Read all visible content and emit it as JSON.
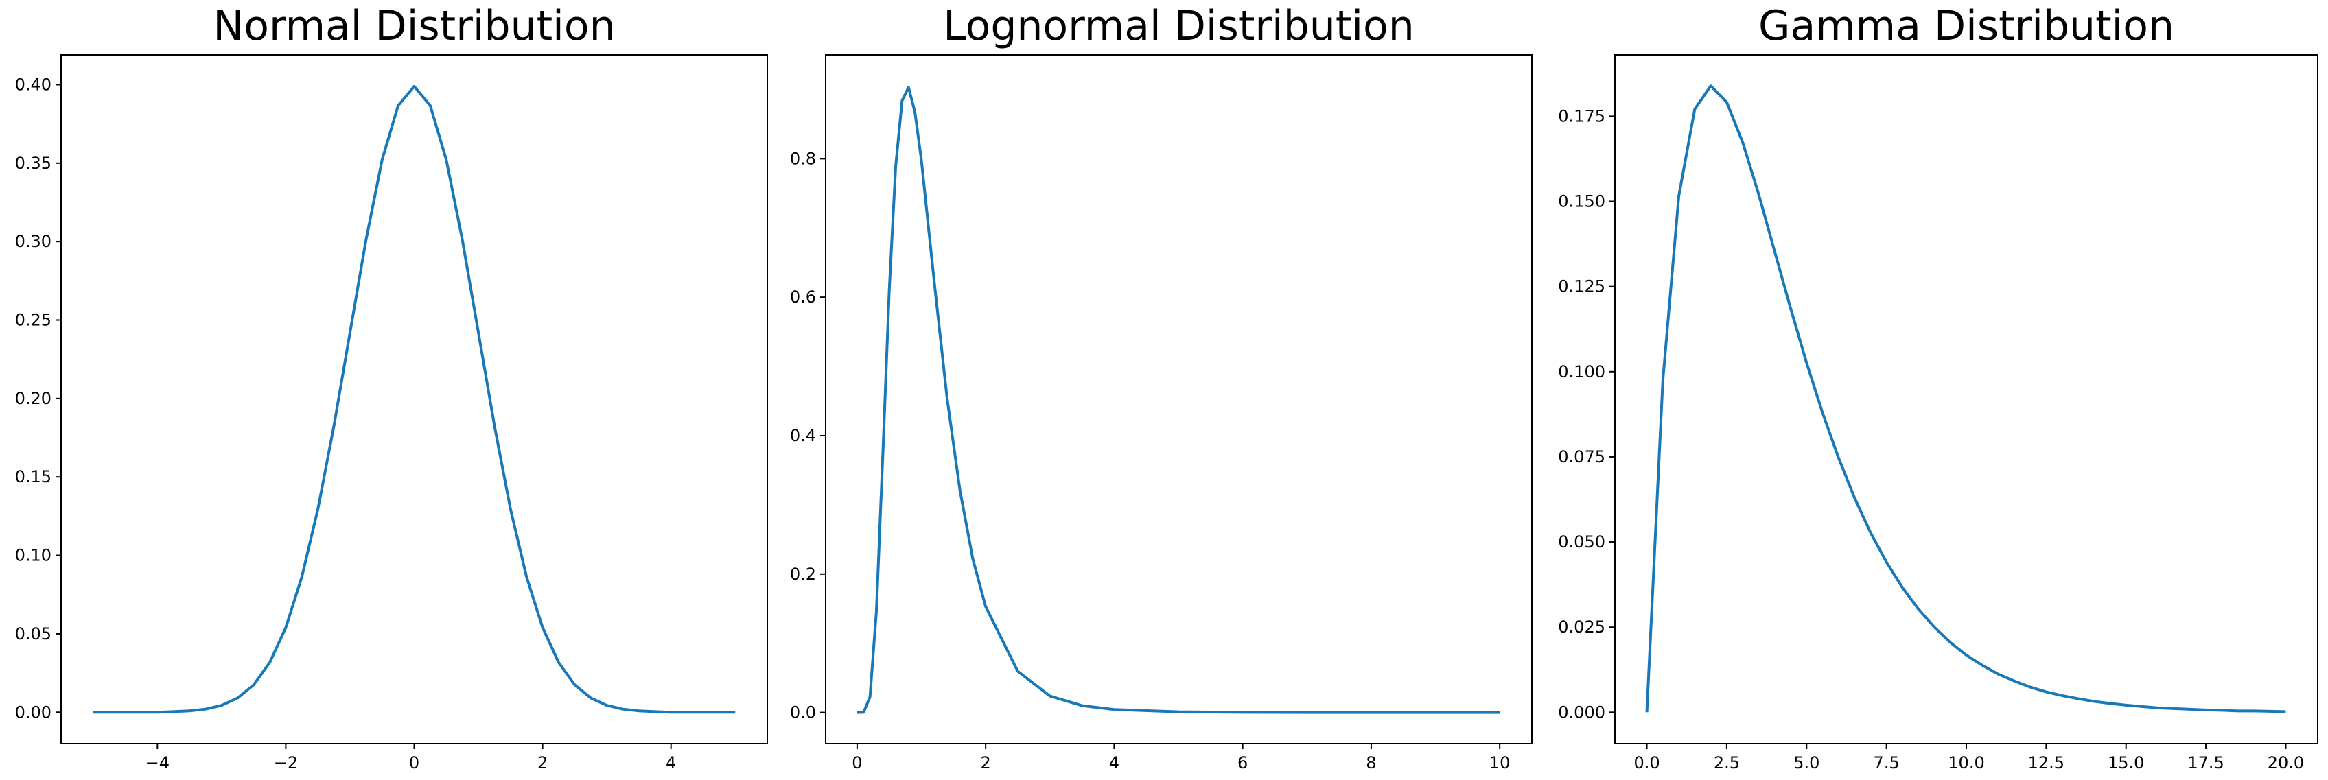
{
  "chart_data": [
    {
      "type": "line",
      "title": "Normal Distribution",
      "color": "#1878b8",
      "x": [
        -5,
        -4.75,
        -4.5,
        -4.25,
        -4,
        -3.75,
        -3.5,
        -3.25,
        -3,
        -2.75,
        -2.5,
        -2.25,
        -2,
        -1.75,
        -1.5,
        -1.25,
        -1,
        -0.75,
        -0.5,
        -0.25,
        0,
        0.25,
        0.5,
        0.75,
        1,
        1.25,
        1.5,
        1.75,
        2,
        2.25,
        2.5,
        2.75,
        3,
        3.25,
        3.5,
        3.75,
        4,
        4.25,
        4.5,
        4.75,
        5
      ],
      "values": [
        0,
        0,
        0,
        0,
        0,
        0.0004,
        0.0009,
        0.002,
        0.0044,
        0.0091,
        0.0175,
        0.0317,
        0.054,
        0.0863,
        0.1295,
        0.1826,
        0.242,
        0.3011,
        0.3521,
        0.3867,
        0.3989,
        0.3867,
        0.3521,
        0.3011,
        0.242,
        0.1826,
        0.1295,
        0.0863,
        0.054,
        0.0317,
        0.0175,
        0.0091,
        0.0044,
        0.002,
        0.0009,
        0.0004,
        0,
        0,
        0,
        0,
        0
      ],
      "xlim": [
        -5.5,
        5.5
      ],
      "ylim": [
        -0.02,
        0.419
      ],
      "xticks": [
        {
          "value": -4,
          "label": "−4"
        },
        {
          "value": -2,
          "label": "−2"
        },
        0,
        2,
        4
      ],
      "yticks": [
        {
          "value": 0,
          "label": "0.00"
        },
        {
          "value": 0.05,
          "label": "0.05"
        },
        {
          "value": 0.1,
          "label": "0.10"
        },
        {
          "value": 0.15,
          "label": "0.15"
        },
        {
          "value": 0.2,
          "label": "0.20"
        },
        {
          "value": 0.25,
          "label": "0.25"
        },
        {
          "value": 0.3,
          "label": "0.30"
        },
        {
          "value": 0.35,
          "label": "0.35"
        },
        {
          "value": 0.4,
          "label": "0.40"
        }
      ]
    },
    {
      "type": "line",
      "title": "Lognormal Distribution",
      "color": "#1878b8",
      "x": [
        0,
        0.1,
        0.2,
        0.3,
        0.4,
        0.5,
        0.6,
        0.7,
        0.8,
        0.9,
        1,
        1.2,
        1.4,
        1.6,
        1.8,
        2,
        2.5,
        3,
        3.5,
        4,
        5,
        6,
        7,
        8,
        9,
        10
      ],
      "values": [
        0,
        0.0002,
        0.0224,
        0.1466,
        0.372,
        0.61,
        0.789,
        0.884,
        0.903,
        0.867,
        0.798,
        0.622,
        0.454,
        0.321,
        0.222,
        0.153,
        0.0595,
        0.0238,
        0.0099,
        0.0043,
        0.0009,
        0.0002,
        0,
        0,
        0,
        0
      ],
      "xlim": [
        -0.49,
        10.5
      ],
      "ylim": [
        -0.045,
        0.95
      ],
      "xticks": [
        0,
        2,
        4,
        6,
        8,
        10
      ],
      "yticks": [
        {
          "value": 0,
          "label": "0.0"
        },
        {
          "value": 0.2,
          "label": "0.2"
        },
        {
          "value": 0.4,
          "label": "0.4"
        },
        {
          "value": 0.6,
          "label": "0.6"
        },
        {
          "value": 0.8,
          "label": "0.8"
        }
      ]
    },
    {
      "type": "line",
      "title": "Gamma Distribution",
      "color": "#1878b8",
      "x": [
        0,
        0.5,
        1,
        1.5,
        2,
        2.5,
        3,
        3.5,
        4,
        4.5,
        5,
        5.5,
        6,
        6.5,
        7,
        7.5,
        8,
        8.5,
        9,
        9.5,
        10,
        10.5,
        11,
        11.5,
        12,
        12.5,
        13,
        13.5,
        14,
        14.5,
        15,
        15.5,
        16,
        16.5,
        17,
        17.5,
        18,
        18.5,
        19,
        19.5,
        20
      ],
      "values": [
        0,
        0.0974,
        0.1516,
        0.1771,
        0.1839,
        0.1791,
        0.1673,
        0.1521,
        0.1353,
        0.1186,
        0.1026,
        0.0879,
        0.0747,
        0.063,
        0.0528,
        0.0441,
        0.0366,
        0.0303,
        0.025,
        0.0205,
        0.0168,
        0.0138,
        0.0112,
        0.0092,
        0.0074,
        0.006,
        0.0049,
        0.004,
        0.0032,
        0.0026,
        0.0021,
        0.0017,
        0.0013,
        0.0011,
        0.0009,
        0.0007,
        0.0006,
        0.0004,
        0.0004,
        0.0003,
        0.0002
      ],
      "xlim": [
        -1,
        21
      ],
      "ylim": [
        -0.0092,
        0.193
      ],
      "xticks": [
        {
          "value": 0,
          "label": "0.0"
        },
        {
          "value": 2.5,
          "label": "2.5"
        },
        {
          "value": 5,
          "label": "5.0"
        },
        {
          "value": 7.5,
          "label": "7.5"
        },
        {
          "value": 10,
          "label": "10.0"
        },
        {
          "value": 12.5,
          "label": "12.5"
        },
        {
          "value": 15,
          "label": "15.0"
        },
        {
          "value": 17.5,
          "label": "17.5"
        },
        {
          "value": 20,
          "label": "20.0"
        }
      ],
      "yticks": [
        {
          "value": 0,
          "label": "0.000"
        },
        {
          "value": 0.025,
          "label": "0.025"
        },
        {
          "value": 0.05,
          "label": "0.050"
        },
        {
          "value": 0.075,
          "label": "0.075"
        },
        {
          "value": 0.1,
          "label": "0.100"
        },
        {
          "value": 0.125,
          "label": "0.125"
        },
        {
          "value": 0.15,
          "label": "0.150"
        },
        {
          "value": 0.175,
          "label": "0.175"
        }
      ]
    }
  ]
}
